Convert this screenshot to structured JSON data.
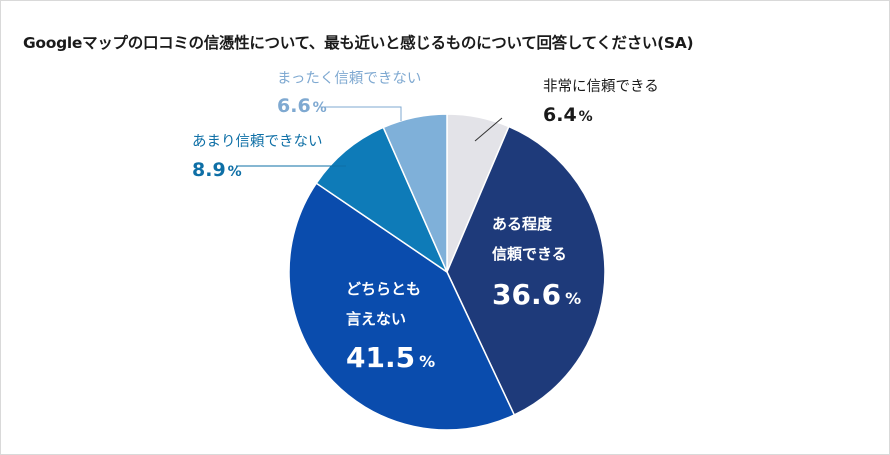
{
  "title": "Googleマップの口コミの信憑性について、最も近いと感じるものについて回答してください(SA)",
  "chart_data": {
    "type": "pie",
    "title": "Googleマップの口コミの信憑性について、最も近いと感じるものについて回答してください(SA)",
    "unit": "%",
    "start": "12 o'clock",
    "direction": "clockwise",
    "slices": [
      {
        "key": "s1",
        "label": "非常に信頼できる",
        "value": 6.4,
        "color": "#e3e3e8",
        "label_color": "#1a1a1a",
        "value_color": "#1a1a1a"
      },
      {
        "key": "s2",
        "label": "ある程度信頼できる",
        "label_lines": [
          "ある程度",
          "信頼できる"
        ],
        "value": 36.6,
        "color": "#1e3a7a",
        "label_color": "#ffffff",
        "value_color": "#ffffff"
      },
      {
        "key": "s3",
        "label": "どちらとも言えない",
        "label_lines": [
          "どちらとも",
          "言えない"
        ],
        "value": 41.5,
        "color": "#0a4cad",
        "label_color": "#ffffff",
        "value_color": "#ffffff"
      },
      {
        "key": "s4",
        "label": "あまり信頼できない",
        "value": 8.9,
        "color": "#0e7bb8",
        "label_color": "#0e6fa6",
        "value_color": "#0e6fa6"
      },
      {
        "key": "s5",
        "label": "まったく信頼できない",
        "value": 6.6,
        "color": "#7fb0d9",
        "label_color": "#7fa9d1",
        "value_color": "#7fa9d1"
      }
    ]
  }
}
